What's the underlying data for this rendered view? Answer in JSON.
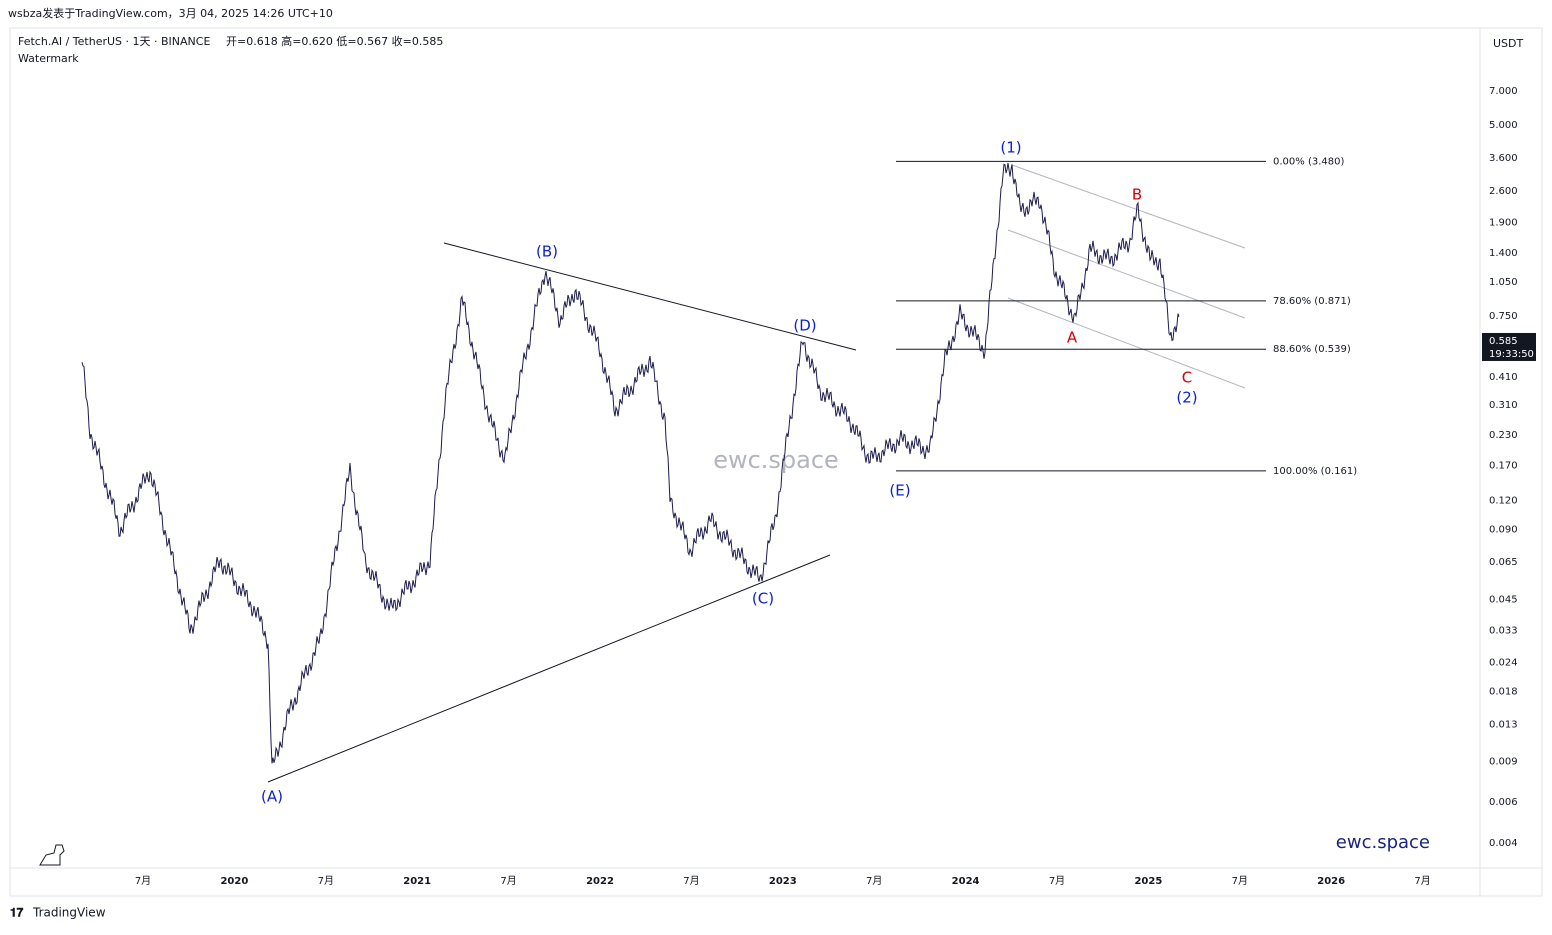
{
  "header": {
    "caption": "wsbza发表于TradingView.com，3月 04, 2025 14:26 UTC+10"
  },
  "legend": {
    "symbol": "Fetch.AI / TetherUS · 1天 · BINANCE",
    "ohlc": "开=0.618 高=0.620 低=0.567 收=0.585",
    "study": "Watermark"
  },
  "price_axis": {
    "currency": "USDT",
    "scale": "log",
    "ticks": [
      {
        "value": 7,
        "label": "7.000"
      },
      {
        "value": 5,
        "label": "5.000"
      },
      {
        "value": 3.6,
        "label": "3.600"
      },
      {
        "value": 2.6,
        "label": "2.600"
      },
      {
        "value": 1.9,
        "label": "1.900"
      },
      {
        "value": 1.4,
        "label": "1.400"
      },
      {
        "value": 1.05,
        "label": "1.050"
      },
      {
        "value": 0.75,
        "label": "0.750"
      },
      {
        "value": 0.41,
        "label": "0.410"
      },
      {
        "value": 0.31,
        "label": "0.310"
      },
      {
        "value": 0.23,
        "label": "0.230"
      },
      {
        "value": 0.17,
        "label": "0.170"
      },
      {
        "value": 0.12,
        "label": "0.120"
      },
      {
        "value": 0.09,
        "label": "0.090"
      },
      {
        "value": 0.065,
        "label": "0.065"
      },
      {
        "value": 0.045,
        "label": "0.045"
      },
      {
        "value": 0.033,
        "label": "0.033"
      },
      {
        "value": 0.024,
        "label": "0.024"
      },
      {
        "value": 0.018,
        "label": "0.018"
      },
      {
        "value": 0.013,
        "label": "0.013"
      },
      {
        "value": 0.009,
        "label": "0.009"
      },
      {
        "value": 0.006,
        "label": "0.006"
      },
      {
        "value": 0.004,
        "label": "0.004"
      }
    ],
    "last_price": {
      "value": 0.585,
      "label": "0.585",
      "countdown": "19:33:50"
    }
  },
  "time_axis": {
    "labels": [
      "7月",
      "2020",
      "7月",
      "2021",
      "7月",
      "2022",
      "7月",
      "2023",
      "7月",
      "2024",
      "7月",
      "2025",
      "7月",
      "2026",
      "7月"
    ]
  },
  "fib_levels": [
    {
      "price": 3.48,
      "label": "0.00% (3.480)"
    },
    {
      "price": 0.871,
      "label": "78.60% (0.871)"
    },
    {
      "price": 0.539,
      "label": "88.60% (0.539)"
    },
    {
      "price": 0.161,
      "label": "100.00% (0.161)"
    }
  ],
  "waves": [
    "(A)",
    "(B)",
    "(C)",
    "(D)",
    "(E)",
    "(1)",
    "A",
    "B",
    "C",
    "(2)"
  ],
  "watermark": "ewc.space",
  "brand": "ewc.space",
  "footer": "TradingView"
}
